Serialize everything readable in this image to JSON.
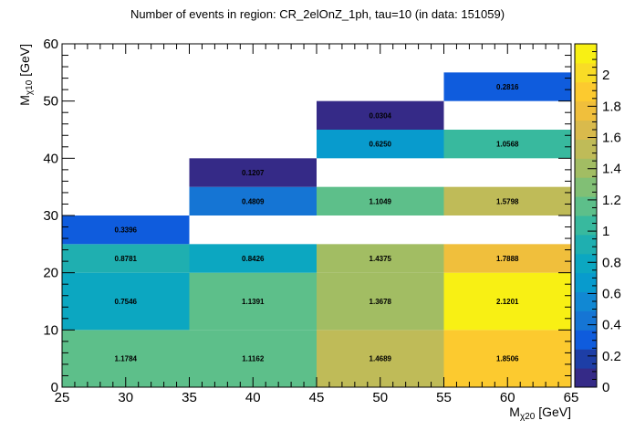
{
  "chart_data": {
    "type": "heatmap",
    "title": "Number of events in region: CR_2elOnZ_1ph, tau=10 (in data: 151059)",
    "xlabel": {
      "main": "M",
      "sub": "χ20",
      "unit": " [GeV]"
    },
    "ylabel": {
      "main": "M",
      "sub": "χ10",
      "unit": " [GeV]"
    },
    "xlim": [
      25,
      65
    ],
    "ylim": [
      0,
      60
    ],
    "x_ticks": [
      25,
      30,
      35,
      40,
      45,
      50,
      55,
      60,
      65
    ],
    "y_ticks": [
      0,
      10,
      20,
      30,
      40,
      50,
      60
    ],
    "z_range": [
      0,
      2.2
    ],
    "z_ticks": [
      0,
      0.2,
      0.4,
      0.6,
      0.8,
      1,
      1.2,
      1.4,
      1.6,
      1.8,
      2
    ],
    "cells": [
      {
        "x": [
          25,
          35
        ],
        "y": [
          0,
          10
        ],
        "value": 1.1784,
        "label": "1.1784"
      },
      {
        "x": [
          25,
          35
        ],
        "y": [
          10,
          20
        ],
        "value": 0.7546,
        "label": "0.7546"
      },
      {
        "x": [
          25,
          35
        ],
        "y": [
          20,
          25
        ],
        "value": 0.8781,
        "label": "0.8781"
      },
      {
        "x": [
          25,
          35
        ],
        "y": [
          25,
          30
        ],
        "value": 0.3396,
        "label": "0.3396"
      },
      {
        "x": [
          35,
          45
        ],
        "y": [
          0,
          10
        ],
        "value": 1.1162,
        "label": "1.1162"
      },
      {
        "x": [
          35,
          45
        ],
        "y": [
          10,
          20
        ],
        "value": 1.1391,
        "label": "1.1391"
      },
      {
        "x": [
          35,
          45
        ],
        "y": [
          20,
          25
        ],
        "value": 0.8426,
        "label": "0.8426"
      },
      {
        "x": [
          35,
          45
        ],
        "y": [
          30,
          35
        ],
        "value": 0.4809,
        "label": "0.4809"
      },
      {
        "x": [
          35,
          45
        ],
        "y": [
          35,
          40
        ],
        "value": 0.1207,
        "label": "0.1207"
      },
      {
        "x": [
          45,
          55
        ],
        "y": [
          0,
          10
        ],
        "value": 1.4689,
        "label": "1.4689"
      },
      {
        "x": [
          45,
          55
        ],
        "y": [
          10,
          20
        ],
        "value": 1.3678,
        "label": "1.3678"
      },
      {
        "x": [
          45,
          55
        ],
        "y": [
          20,
          25
        ],
        "value": 1.4375,
        "label": "1.4375"
      },
      {
        "x": [
          45,
          55
        ],
        "y": [
          30,
          35
        ],
        "value": 1.1049,
        "label": "1.1049"
      },
      {
        "x": [
          45,
          55
        ],
        "y": [
          40,
          45
        ],
        "value": 0.625,
        "label": "0.6250"
      },
      {
        "x": [
          45,
          55
        ],
        "y": [
          45,
          50
        ],
        "value": 0.0304,
        "label": "0.0304"
      },
      {
        "x": [
          55,
          65
        ],
        "y": [
          0,
          10
        ],
        "value": 1.8506,
        "label": "1.8506"
      },
      {
        "x": [
          55,
          65
        ],
        "y": [
          10,
          20
        ],
        "value": 2.1201,
        "label": "2.1201"
      },
      {
        "x": [
          55,
          65
        ],
        "y": [
          20,
          25
        ],
        "value": 1.7888,
        "label": "1.7888"
      },
      {
        "x": [
          55,
          65
        ],
        "y": [
          30,
          35
        ],
        "value": 1.5798,
        "label": "1.5798"
      },
      {
        "x": [
          55,
          65
        ],
        "y": [
          40,
          45
        ],
        "value": 1.0568,
        "label": "1.0568"
      },
      {
        "x": [
          55,
          65
        ],
        "y": [
          50,
          55
        ],
        "value": 0.2816,
        "label": "0.2816"
      }
    ],
    "palette": [
      "#352a87",
      "#1d3ea6",
      "#0f5cdd",
      "#1575d4",
      "#1188d3",
      "#089bcd",
      "#0ca7c1",
      "#1fafb0",
      "#38b99e",
      "#5dbf8a",
      "#81bf75",
      "#a2bd63",
      "#bfbb58",
      "#d9ba4c",
      "#f0bf3c",
      "#fcca2f",
      "#f9dc26",
      "#f8f014"
    ],
    "colors": {
      "background": "#ffffff",
      "frame": "#000000",
      "empty": "#ffffff"
    }
  }
}
